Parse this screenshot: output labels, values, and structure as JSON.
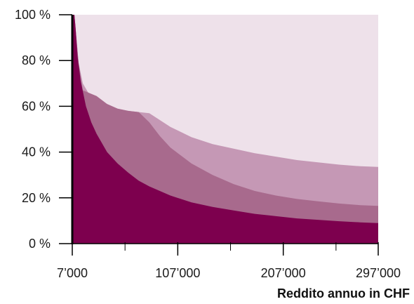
{
  "chart_data": {
    "type": "area",
    "title": "",
    "xlabel": "Reddito annuo in CHF",
    "ylabel": "",
    "xlim": [
      7000,
      297000
    ],
    "ylim": [
      0,
      100
    ],
    "x_ticks": [
      7000,
      107000,
      207000,
      297000
    ],
    "x_tick_labels": [
      "7’000",
      "107’000",
      "207’000",
      "297’000"
    ],
    "y_ticks": [
      0,
      20,
      40,
      60,
      80,
      100
    ],
    "y_tick_labels": [
      "0 %",
      "20 %",
      "40 %",
      "60 %",
      "80 %",
      "100 %"
    ],
    "grid": false,
    "background_color": "#eee1ea",
    "series": [
      {
        "color": "#c598b5",
        "points": [
          [
            7000,
            100
          ],
          [
            9000,
            100
          ],
          [
            13000,
            79
          ],
          [
            17000,
            70
          ],
          [
            22000,
            66
          ],
          [
            30000,
            63
          ],
          [
            40000,
            61
          ],
          [
            50000,
            59
          ],
          [
            60000,
            58
          ],
          [
            70000,
            57.5
          ],
          [
            80000,
            57
          ],
          [
            90000,
            54
          ],
          [
            100000,
            51
          ],
          [
            120000,
            46.5
          ],
          [
            140000,
            43.5
          ],
          [
            160000,
            41.5
          ],
          [
            180000,
            39.5
          ],
          [
            200000,
            38
          ],
          [
            220000,
            36.5
          ],
          [
            240000,
            35.5
          ],
          [
            260000,
            34.5
          ],
          [
            280000,
            33.8
          ],
          [
            297000,
            33.5
          ]
        ]
      },
      {
        "color": "#a86a8d",
        "points": [
          [
            7000,
            100
          ],
          [
            9000,
            100
          ],
          [
            13000,
            79
          ],
          [
            17000,
            67
          ],
          [
            22000,
            66
          ],
          [
            30000,
            64.5
          ],
          [
            40000,
            61
          ],
          [
            50000,
            59
          ],
          [
            60000,
            58
          ],
          [
            70000,
            57.5
          ],
          [
            80000,
            53
          ],
          [
            90000,
            47
          ],
          [
            100000,
            42
          ],
          [
            120000,
            35
          ],
          [
            140000,
            30
          ],
          [
            160000,
            26
          ],
          [
            180000,
            23
          ],
          [
            200000,
            21
          ],
          [
            220000,
            19.5
          ],
          [
            240000,
            18.5
          ],
          [
            260000,
            17.5
          ],
          [
            280000,
            16.8
          ],
          [
            297000,
            16.5
          ]
        ]
      },
      {
        "color": "#7d004e",
        "points": [
          [
            7000,
            100
          ],
          [
            9000,
            100
          ],
          [
            10000,
            95
          ],
          [
            12000,
            82
          ],
          [
            15000,
            71
          ],
          [
            20000,
            60
          ],
          [
            25000,
            53
          ],
          [
            30000,
            48
          ],
          [
            40000,
            40
          ],
          [
            50000,
            35
          ],
          [
            60000,
            31
          ],
          [
            70000,
            27.5
          ],
          [
            80000,
            25
          ],
          [
            90000,
            23
          ],
          [
            100000,
            21
          ],
          [
            120000,
            18
          ],
          [
            140000,
            16
          ],
          [
            160000,
            14.5
          ],
          [
            180000,
            13
          ],
          [
            200000,
            12
          ],
          [
            220000,
            11
          ],
          [
            240000,
            10.4
          ],
          [
            260000,
            9.8
          ],
          [
            280000,
            9.3
          ],
          [
            297000,
            9
          ]
        ]
      }
    ]
  }
}
